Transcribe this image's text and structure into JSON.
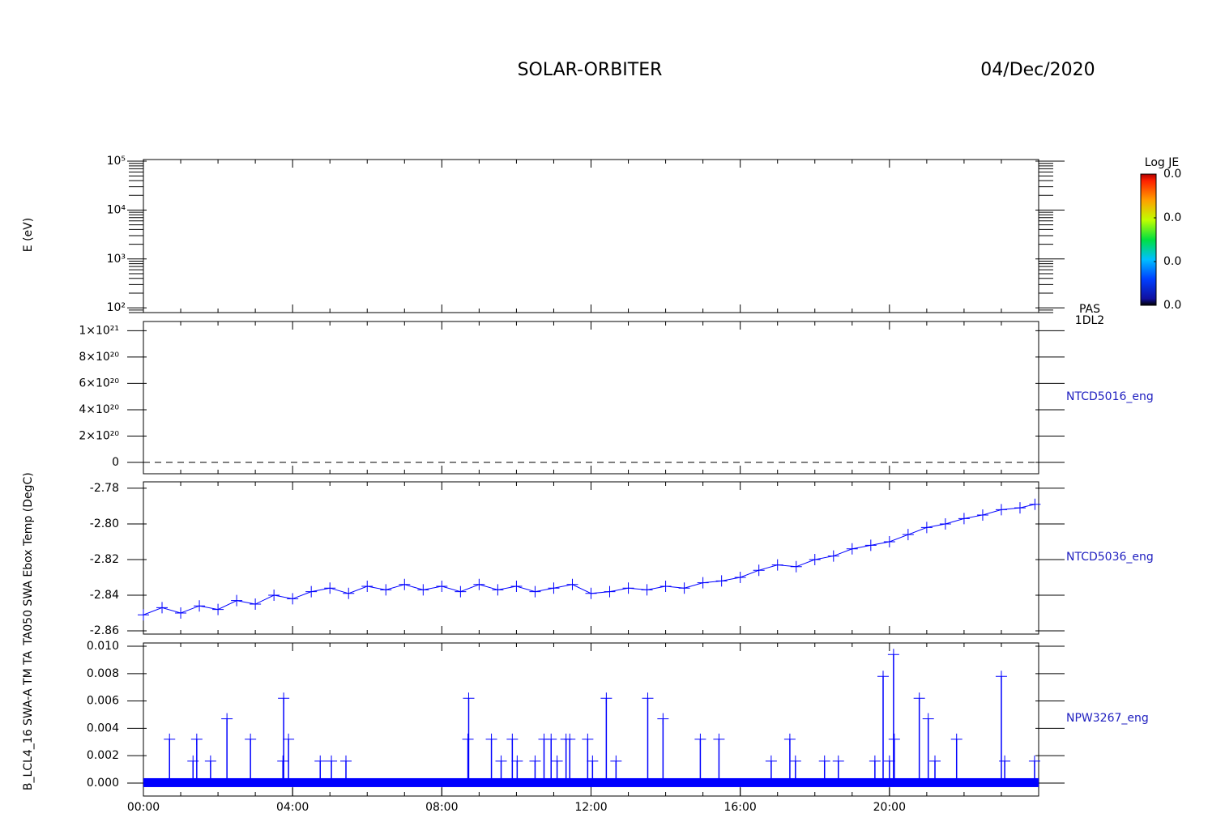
{
  "header": {
    "title": "SOLAR-ORBITER",
    "date": "04/Dec/2020"
  },
  "chart_data": [
    {
      "type": "heatmap",
      "ylabel": "E (eV)",
      "log_y": true,
      "xlim": [
        0,
        24
      ],
      "ylim": [
        80,
        108000
      ],
      "yticks": [
        {
          "value": 100,
          "label": "10²"
        },
        {
          "value": 1000,
          "label": "10³"
        },
        {
          "value": 10000,
          "label": "10⁴"
        },
        {
          "value": 100000,
          "label": "10⁵"
        }
      ],
      "side_label": [
        "PAS",
        "1DL2"
      ],
      "colorbar": {
        "title": "Log JE",
        "clim": [
          0,
          0.03
        ],
        "ticks": [
          {
            "value": 0,
            "label": "0.0"
          },
          {
            "value": 0.01,
            "label": "0.0"
          },
          {
            "value": 0.02,
            "label": "0.0"
          },
          {
            "value": 0.03,
            "label": "0.0"
          }
        ]
      }
    },
    {
      "type": "line",
      "xlim": [
        0,
        24
      ],
      "ylim": [
        -86000000000000000000,
        1070000000000000000000
      ],
      "yticks": [
        0,
        {
          "value": 200000000000000000000,
          "label": "2×10²⁰"
        },
        {
          "value": 400000000000000000000,
          "label": "4×10²⁰"
        },
        {
          "value": 600000000000000000000,
          "label": "6×10²⁰"
        },
        {
          "value": 800000000000000000000,
          "label": "8×10²⁰"
        },
        {
          "value": 1000000000000000000000,
          "label": "1×10²¹"
        }
      ],
      "series": [
        {
          "name": "NTCD5016_eng",
          "color": "#000000",
          "linestyle": "dashed",
          "x": [
            0,
            24
          ],
          "values": [
            0,
            0
          ]
        }
      ]
    },
    {
      "type": "line",
      "ylabel": "TA050 SWA Ebox Temp (DegC)",
      "xlim": [
        0,
        24
      ],
      "ylim": [
        -2.8618,
        -2.7764
      ],
      "yticks": [
        -2.86,
        {
          "value": -2.84,
          "label": "-2.84"
        },
        {
          "value": -2.82,
          "label": "-2.82"
        },
        {
          "value": -2.8,
          "label": "-2.80"
        },
        -2.78
      ],
      "series": [
        {
          "name": "NTCD5036_eng",
          "color": "#0000ff",
          "marker": "plus",
          "x": [
            0,
            0.5,
            1,
            1.5,
            2,
            2.5,
            3,
            3.5,
            4,
            4.5,
            5,
            5.5,
            6,
            6.5,
            7,
            7.5,
            8,
            8.5,
            9,
            9.5,
            10,
            10.5,
            11,
            11.5,
            12,
            12.5,
            13,
            13.5,
            14,
            14.5,
            15,
            15.5,
            16,
            16.5,
            17,
            17.5,
            18,
            18.5,
            19,
            19.5,
            20,
            20.5,
            21,
            21.5,
            22,
            22.5,
            23,
            23.5,
            23.9
          ],
          "values": [
            -2.851,
            -2.847,
            -2.85,
            -2.846,
            -2.848,
            -2.843,
            -2.845,
            -2.84,
            -2.842,
            -2.838,
            -2.836,
            -2.839,
            -2.835,
            -2.837,
            -2.834,
            -2.837,
            -2.835,
            -2.838,
            -2.834,
            -2.837,
            -2.835,
            -2.838,
            -2.836,
            -2.834,
            -2.839,
            -2.838,
            -2.836,
            -2.837,
            -2.835,
            -2.836,
            -2.833,
            -2.832,
            -2.83,
            -2.826,
            -2.823,
            -2.824,
            -2.82,
            -2.818,
            -2.814,
            -2.812,
            -2.81,
            -2.806,
            -2.802,
            -2.8,
            -2.797,
            -2.795,
            -2.792,
            -2.791,
            -2.789
          ]
        }
      ]
    },
    {
      "type": "stem",
      "ylabel": "B_LCL4_16 SWA-A TM TA",
      "xlim": [
        0,
        24
      ],
      "ylim": [
        -0.00095,
        0.01024
      ],
      "yticks": [
        {
          "value": 0,
          "label": "0.000"
        },
        {
          "value": 0.002,
          "label": "0.002"
        },
        {
          "value": 0.004,
          "label": "0.004"
        },
        {
          "value": 0.006,
          "label": "0.006"
        },
        {
          "value": 0.008,
          "label": "0.008"
        },
        {
          "value": 0.01,
          "label": "0.010"
        }
      ],
      "xticks": [
        {
          "value": 0,
          "label": "00:00"
        },
        {
          "value": 4,
          "label": "04:00"
        },
        {
          "value": 8,
          "label": "08:00"
        },
        {
          "value": 12,
          "label": "12:00"
        },
        {
          "value": 16,
          "label": "16:00"
        },
        {
          "value": 20,
          "label": "20:00"
        }
      ],
      "series": [
        {
          "name": "NPW3267_eng",
          "color": "#0000ff",
          "marker": "plus",
          "x": [
            0.7,
            1.33,
            1.43,
            1.8,
            2.24,
            2.87,
            3.74,
            3.76,
            3.89,
            4.74,
            5.04,
            5.43,
            8.7,
            8.72,
            9.33,
            9.59,
            9.89,
            10.02,
            10.5,
            10.74,
            10.93,
            11.09,
            11.33,
            11.43,
            11.91,
            12.04,
            12.41,
            12.67,
            13.52,
            13.93,
            14.93,
            15.43,
            16.83,
            17.33,
            17.48,
            18.26,
            18.63,
            19.61,
            19.83,
            20.0,
            20.11,
            20.13,
            20.8,
            21.04,
            21.22,
            21.8,
            23.0,
            23.09,
            23.89
          ],
          "values": [
            0.0032,
            0.0016,
            0.0032,
            0.0016,
            0.0047,
            0.0032,
            0.0016,
            0.0062,
            0.0032,
            0.0016,
            0.0016,
            0.0016,
            0.0032,
            0.0062,
            0.0032,
            0.0016,
            0.0032,
            0.0016,
            0.0016,
            0.0032,
            0.0032,
            0.0016,
            0.0032,
            0.0032,
            0.0032,
            0.0016,
            0.0062,
            0.0016,
            0.0062,
            0.0047,
            0.0032,
            0.0032,
            0.0016,
            0.0032,
            0.0016,
            0.0016,
            0.0016,
            0.0016,
            0.0078,
            0.0016,
            0.0094,
            0.0032,
            0.0062,
            0.0047,
            0.0016,
            0.0032,
            0.0078,
            0.0016,
            0.0016
          ]
        }
      ]
    }
  ]
}
